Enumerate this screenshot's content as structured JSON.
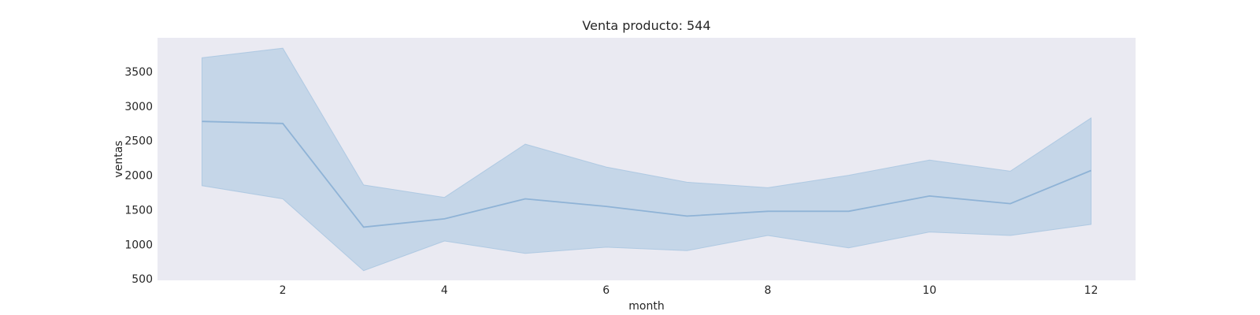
{
  "chart_data": {
    "type": "line",
    "title": "Venta producto: 544",
    "xlabel": "month",
    "ylabel": "ventas",
    "xlim": [
      0.45,
      12.55
    ],
    "ylim": [
      480,
      3990
    ],
    "xticks": [
      2,
      4,
      6,
      8,
      10,
      12
    ],
    "yticks": [
      500,
      1000,
      1500,
      2000,
      2500,
      3000,
      3500
    ],
    "grid": false,
    "legend": "none",
    "series": [
      {
        "x": [
          1,
          2,
          3,
          4,
          5,
          6,
          7,
          8,
          9,
          10,
          11,
          12
        ],
        "values": [
          2780,
          2750,
          1250,
          1370,
          1660,
          1550,
          1410,
          1480,
          1480,
          1700,
          1590,
          2070
        ],
        "ci_lower": [
          1850,
          1660,
          620,
          1050,
          870,
          960,
          910,
          1130,
          950,
          1180,
          1130,
          1290
        ],
        "ci_upper": [
          3700,
          3840,
          1860,
          1680,
          2450,
          2120,
          1900,
          1820,
          2000,
          2220,
          2060,
          2830
        ]
      }
    ]
  },
  "colors": {
    "plot_background": "#eaeaf2",
    "band_fill": "#a6c4e0",
    "line": "#8fb3d6"
  }
}
